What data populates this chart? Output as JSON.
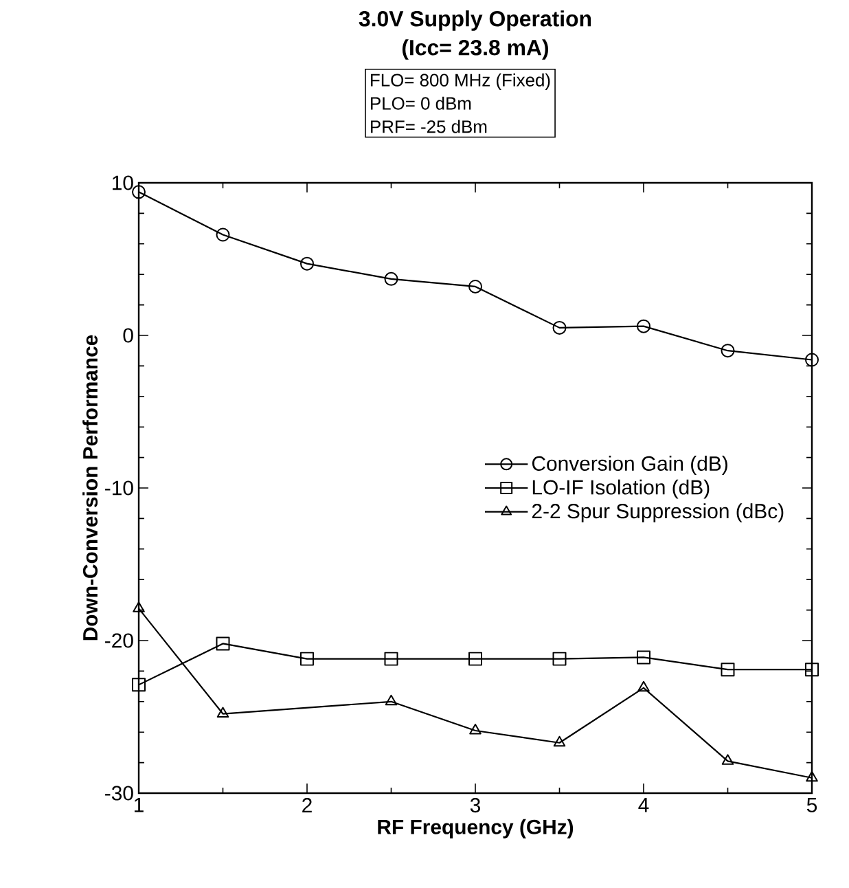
{
  "chart_data": {
    "type": "line",
    "title": "3.0V  Supply    Operation",
    "subtitle": "(Icc= 23.8 mA)",
    "annotations": [
      "FLO= 800 MHz (Fixed)",
      "PLO= 0 dBm",
      "PRF= -25 dBm"
    ],
    "xlabel": "RF  Frequency  (GHz)",
    "ylabel": "Down-Conversion  Performance",
    "xlim": [
      1,
      5
    ],
    "xticks": [
      1,
      2,
      3,
      4,
      5
    ],
    "ylim": [
      -30,
      10
    ],
    "yticks": [
      -30,
      -20,
      -10,
      0,
      10
    ],
    "grid": false,
    "legend": "right",
    "line_style": "solid",
    "series": [
      {
        "name": "Conversion Gain (dB)",
        "color": "#000000",
        "marker": "circle",
        "x": [
          1,
          1.5,
          2,
          2.5,
          3,
          3.5,
          4,
          4.5,
          5
        ],
        "values": [
          9.4,
          6.6,
          4.7,
          3.7,
          3.2,
          0.5,
          0.6,
          -1.0,
          -1.6
        ]
      },
      {
        "name": "LO-IF Isolation (dB)",
        "color": "#000000",
        "marker": "square",
        "x": [
          1,
          1.5,
          2,
          2.5,
          3,
          3.5,
          4,
          4.5,
          5
        ],
        "values": [
          -22.9,
          -20.2,
          -21.2,
          -21.2,
          -21.2,
          -21.2,
          -21.1,
          -21.9,
          -21.9
        ]
      },
      {
        "name": "2-2 Spur Suppression (dBc)",
        "color": "#000000",
        "marker": "triangle",
        "x": [
          1,
          1.5,
          2.5,
          3,
          3.5,
          4,
          4.5,
          5
        ],
        "values": [
          -17.9,
          -24.8,
          -24.0,
          -25.9,
          -26.7,
          -23.1,
          -27.9,
          -29.0
        ]
      }
    ]
  }
}
